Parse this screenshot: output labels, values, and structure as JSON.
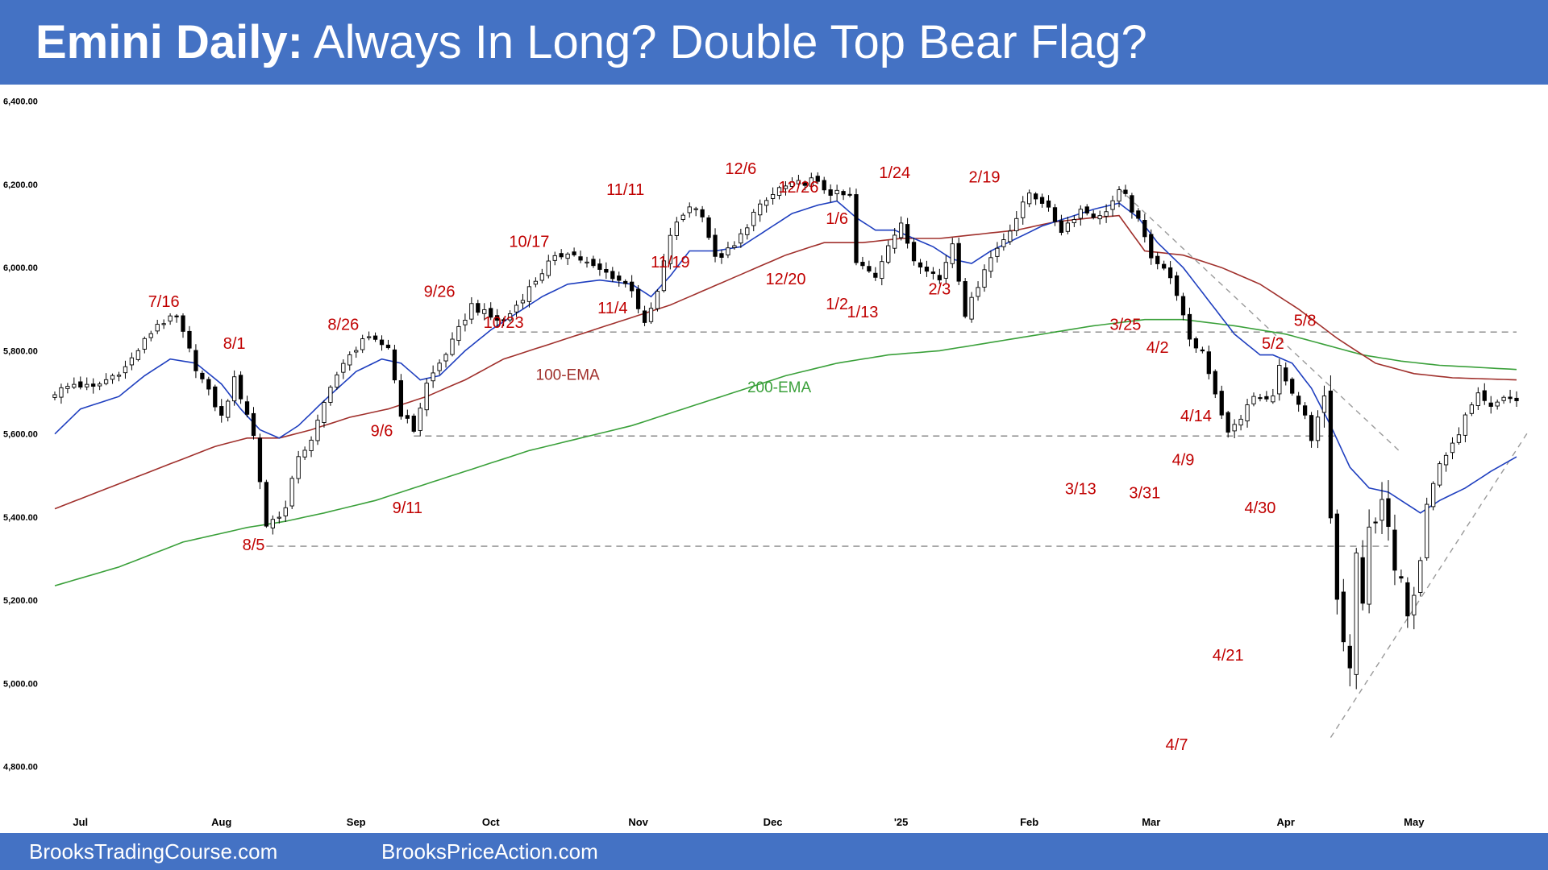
{
  "header": {
    "title_bold": "Emini Daily:",
    "title_rest": " Always In Long? Double Top Bear Flag?"
  },
  "footer": {
    "left": "BrooksTradingCourse.com",
    "right": "BrooksPriceAction.com"
  },
  "colors": {
    "header_bg": "#4472c4",
    "ema20": "#1f3fbf",
    "ema100": "#a0302c",
    "ema200": "#3aa03a",
    "annotation": "#c00000"
  },
  "chart_data": {
    "type": "candlestick",
    "ylim": [
      4720,
      6440
    ],
    "y_ticks": [
      "6,400.00",
      "6,200.00",
      "6,000.00",
      "5,800.00",
      "5,600.00",
      "5,400.00",
      "5,200.00",
      "5,000.00",
      "4,800.00"
    ],
    "y_tick_values": [
      6400,
      6200,
      6000,
      5800,
      5600,
      5400,
      5200,
      5000,
      4800
    ],
    "x_ticks": [
      {
        "label": "Jul",
        "i": 4
      },
      {
        "label": "Aug",
        "i": 26
      },
      {
        "label": "Sep",
        "i": 47
      },
      {
        "label": "Oct",
        "i": 68
      },
      {
        "label": "Nov",
        "i": 91
      },
      {
        "label": "Dec",
        "i": 112
      },
      {
        "label": "'25",
        "i": 132
      },
      {
        "label": "Feb",
        "i": 152
      },
      {
        "label": "Mar",
        "i": 171
      },
      {
        "label": "Apr",
        "i": 192
      },
      {
        "label": "May",
        "i": 212
      }
    ],
    "anchors": [
      [
        0,
        5700
      ],
      [
        3,
        5720
      ],
      [
        6,
        5710
      ],
      [
        11,
        5760
      ],
      [
        16,
        5865
      ],
      [
        19,
        5880
      ],
      [
        22,
        5760
      ],
      [
        26,
        5640
      ],
      [
        28,
        5730
      ],
      [
        30,
        5650
      ],
      [
        31,
        5595
      ],
      [
        33,
        5380
      ],
      [
        36,
        5420
      ],
      [
        38,
        5550
      ],
      [
        40,
        5580
      ],
      [
        43,
        5720
      ],
      [
        48,
        5830
      ],
      [
        52,
        5810
      ],
      [
        54,
        5650
      ],
      [
        56,
        5610
      ],
      [
        58,
        5720
      ],
      [
        62,
        5820
      ],
      [
        65,
        5910
      ],
      [
        68,
        5880
      ],
      [
        70,
        5870
      ],
      [
        73,
        5930
      ],
      [
        77,
        6010
      ],
      [
        80,
        6040
      ],
      [
        84,
        6000
      ],
      [
        87,
        5980
      ],
      [
        90,
        5950
      ],
      [
        92,
        5860
      ],
      [
        94,
        5940
      ],
      [
        96,
        6080
      ],
      [
        99,
        6150
      ],
      [
        101,
        6130
      ],
      [
        103,
        6020
      ],
      [
        106,
        6050
      ],
      [
        109,
        6130
      ],
      [
        113,
        6190
      ],
      [
        118,
        6210
      ],
      [
        121,
        6180
      ],
      [
        124,
        6170
      ],
      [
        125,
        6010
      ],
      [
        128,
        5980
      ],
      [
        130,
        6060
      ],
      [
        132,
        6100
      ],
      [
        134,
        6020
      ],
      [
        136,
        6000
      ],
      [
        138,
        5970
      ],
      [
        140,
        6060
      ],
      [
        142,
        5890
      ],
      [
        143,
        5920
      ],
      [
        145,
        6000
      ],
      [
        148,
        6070
      ],
      [
        150,
        6120
      ],
      [
        152,
        6180
      ],
      [
        154,
        6160
      ],
      [
        157,
        6090
      ],
      [
        160,
        6140
      ],
      [
        163,
        6120
      ],
      [
        166,
        6180
      ],
      [
        167,
        6170
      ],
      [
        169,
        6110
      ],
      [
        171,
        6030
      ],
      [
        173,
        6000
      ],
      [
        175,
        5940
      ],
      [
        177,
        5820
      ],
      [
        179,
        5800
      ],
      [
        181,
        5700
      ],
      [
        183,
        5600
      ],
      [
        185,
        5640
      ],
      [
        187,
        5690
      ],
      [
        189,
        5680
      ],
      [
        190,
        5700
      ],
      [
        191,
        5760
      ],
      [
        193,
        5690
      ],
      [
        195,
        5640
      ],
      [
        196,
        5580
      ],
      [
        198,
        5690
      ],
      [
        199,
        5400
      ],
      [
        200,
        5200
      ],
      [
        201,
        5100
      ],
      [
        202,
        5030
      ],
      [
        203,
        5310
      ],
      [
        204,
        5200
      ],
      [
        205,
        5380
      ],
      [
        206,
        5380
      ],
      [
        207,
        5440
      ],
      [
        208,
        5370
      ],
      [
        209,
        5280
      ],
      [
        210,
        5260
      ],
      [
        211,
        5170
      ],
      [
        212,
        5220
      ],
      [
        213,
        5300
      ],
      [
        214,
        5430
      ],
      [
        216,
        5530
      ],
      [
        218,
        5570
      ],
      [
        220,
        5640
      ],
      [
        222,
        5690
      ],
      [
        224,
        5660
      ],
      [
        226,
        5690
      ],
      [
        228,
        5680
      ]
    ],
    "ema20": [
      [
        0,
        5600
      ],
      [
        4,
        5660
      ],
      [
        10,
        5690
      ],
      [
        14,
        5740
      ],
      [
        18,
        5780
      ],
      [
        22,
        5770
      ],
      [
        26,
        5720
      ],
      [
        29,
        5660
      ],
      [
        32,
        5610
      ],
      [
        35,
        5590
      ],
      [
        38,
        5620
      ],
      [
        42,
        5680
      ],
      [
        47,
        5750
      ],
      [
        51,
        5780
      ],
      [
        54,
        5770
      ],
      [
        57,
        5730
      ],
      [
        60,
        5740
      ],
      [
        64,
        5800
      ],
      [
        68,
        5850
      ],
      [
        72,
        5890
      ],
      [
        76,
        5930
      ],
      [
        80,
        5960
      ],
      [
        85,
        5970
      ],
      [
        90,
        5960
      ],
      [
        93,
        5930
      ],
      [
        96,
        5980
      ],
      [
        99,
        6040
      ],
      [
        103,
        6040
      ],
      [
        107,
        6050
      ],
      [
        111,
        6090
      ],
      [
        115,
        6130
      ],
      [
        119,
        6150
      ],
      [
        122,
        6160
      ],
      [
        125,
        6120
      ],
      [
        128,
        6090
      ],
      [
        131,
        6090
      ],
      [
        134,
        6070
      ],
      [
        137,
        6050
      ],
      [
        140,
        6020
      ],
      [
        143,
        6010
      ],
      [
        146,
        6040
      ],
      [
        150,
        6070
      ],
      [
        154,
        6100
      ],
      [
        158,
        6120
      ],
      [
        162,
        6140
      ],
      [
        166,
        6155
      ],
      [
        169,
        6120
      ],
      [
        172,
        6060
      ],
      [
        176,
        6000
      ],
      [
        180,
        5920
      ],
      [
        184,
        5840
      ],
      [
        188,
        5790
      ],
      [
        190,
        5790
      ],
      [
        193,
        5770
      ],
      [
        196,
        5710
      ],
      [
        199,
        5620
      ],
      [
        202,
        5520
      ],
      [
        205,
        5470
      ],
      [
        208,
        5460
      ],
      [
        211,
        5430
      ],
      [
        213,
        5410
      ],
      [
        216,
        5440
      ],
      [
        220,
        5470
      ],
      [
        224,
        5510
      ],
      [
        228,
        5545
      ]
    ],
    "ema100": [
      [
        0,
        5420
      ],
      [
        10,
        5480
      ],
      [
        20,
        5540
      ],
      [
        25,
        5570
      ],
      [
        30,
        5590
      ],
      [
        35,
        5590
      ],
      [
        40,
        5610
      ],
      [
        46,
        5640
      ],
      [
        52,
        5660
      ],
      [
        58,
        5690
      ],
      [
        64,
        5730
      ],
      [
        70,
        5780
      ],
      [
        76,
        5810
      ],
      [
        82,
        5840
      ],
      [
        90,
        5880
      ],
      [
        96,
        5910
      ],
      [
        102,
        5950
      ],
      [
        108,
        5990
      ],
      [
        114,
        6030
      ],
      [
        120,
        6060
      ],
      [
        126,
        6060
      ],
      [
        132,
        6070
      ],
      [
        138,
        6070
      ],
      [
        144,
        6080
      ],
      [
        150,
        6090
      ],
      [
        156,
        6110
      ],
      [
        162,
        6120
      ],
      [
        166,
        6125
      ],
      [
        170,
        6040
      ],
      [
        176,
        6030
      ],
      [
        182,
        6000
      ],
      [
        188,
        5960
      ],
      [
        194,
        5900
      ],
      [
        200,
        5830
      ],
      [
        206,
        5770
      ],
      [
        212,
        5745
      ],
      [
        218,
        5735
      ],
      [
        228,
        5730
      ]
    ],
    "ema200": [
      [
        0,
        5235
      ],
      [
        10,
        5280
      ],
      [
        20,
        5340
      ],
      [
        30,
        5375
      ],
      [
        36,
        5390
      ],
      [
        42,
        5410
      ],
      [
        50,
        5440
      ],
      [
        58,
        5480
      ],
      [
        66,
        5520
      ],
      [
        74,
        5560
      ],
      [
        82,
        5590
      ],
      [
        90,
        5620
      ],
      [
        98,
        5660
      ],
      [
        106,
        5700
      ],
      [
        114,
        5740
      ],
      [
        122,
        5770
      ],
      [
        130,
        5790
      ],
      [
        138,
        5800
      ],
      [
        146,
        5820
      ],
      [
        154,
        5840
      ],
      [
        162,
        5860
      ],
      [
        170,
        5875
      ],
      [
        176,
        5875
      ],
      [
        184,
        5860
      ],
      [
        192,
        5840
      ],
      [
        198,
        5815
      ],
      [
        204,
        5790
      ],
      [
        210,
        5775
      ],
      [
        216,
        5765
      ],
      [
        222,
        5760
      ],
      [
        228,
        5755
      ]
    ],
    "h_lines": [
      {
        "y": 5845,
        "i0": 69,
        "i1": 228
      },
      {
        "y": 5595,
        "i0": 56,
        "i1": 200
      },
      {
        "y": 5330,
        "i0": 33,
        "i1": 208
      }
    ],
    "trend_lines": [
      {
        "i0": 166,
        "y0": 6190,
        "i1": 210,
        "y1": 5555
      },
      {
        "i0": 199,
        "y0": 4870,
        "i1": 230,
        "y1": 5610
      }
    ],
    "annotations": [
      {
        "text": "7/16",
        "i": 17,
        "y": 5905
      },
      {
        "text": "8/1",
        "i": 28,
        "y": 5805
      },
      {
        "text": "8/5",
        "i": 31,
        "y": 5320
      },
      {
        "text": "8/26",
        "i": 45,
        "y": 5850
      },
      {
        "text": "9/6",
        "i": 51,
        "y": 5595
      },
      {
        "text": "9/11",
        "i": 55,
        "y": 5410
      },
      {
        "text": "9/26",
        "i": 60,
        "y": 5930
      },
      {
        "text": "10/17",
        "i": 74,
        "y": 6050
      },
      {
        "text": "10/23",
        "i": 70,
        "y": 5855
      },
      {
        "text": "11/4",
        "i": 87,
        "y": 5890
      },
      {
        "text": "11/11",
        "i": 89,
        "y": 6175
      },
      {
        "text": "11/19",
        "i": 96,
        "y": 6000
      },
      {
        "text": "100-EMA",
        "i": 80,
        "y": 5730,
        "cls": "ema100"
      },
      {
        "text": "12/6",
        "i": 107,
        "y": 6225
      },
      {
        "text": "12/26",
        "i": 116,
        "y": 6180
      },
      {
        "text": "12/20",
        "i": 114,
        "y": 5960
      },
      {
        "text": "1/6",
        "i": 122,
        "y": 6105
      },
      {
        "text": "1/2",
        "i": 122,
        "y": 5900
      },
      {
        "text": "1/13",
        "i": 126,
        "y": 5880
      },
      {
        "text": "200-EMA",
        "i": 113,
        "y": 5700,
        "cls": "ema200"
      },
      {
        "text": "1/24",
        "i": 131,
        "y": 6215
      },
      {
        "text": "2/3",
        "i": 138,
        "y": 5935
      },
      {
        "text": "2/19",
        "i": 145,
        "y": 6205
      },
      {
        "text": "3/25",
        "i": 167,
        "y": 5850
      },
      {
        "text": "4/2",
        "i": 172,
        "y": 5795
      },
      {
        "text": "3/13",
        "i": 160,
        "y": 5455
      },
      {
        "text": "3/31",
        "i": 170,
        "y": 5445
      },
      {
        "text": "4/14",
        "i": 178,
        "y": 5630
      },
      {
        "text": "4/9",
        "i": 176,
        "y": 5525
      },
      {
        "text": "4/30",
        "i": 188,
        "y": 5410
      },
      {
        "text": "4/21",
        "i": 183,
        "y": 5055
      },
      {
        "text": "4/7",
        "i": 175,
        "y": 4840
      },
      {
        "text": "5/2",
        "i": 190,
        "y": 5805
      },
      {
        "text": "5/8",
        "i": 195,
        "y": 5860
      }
    ]
  }
}
